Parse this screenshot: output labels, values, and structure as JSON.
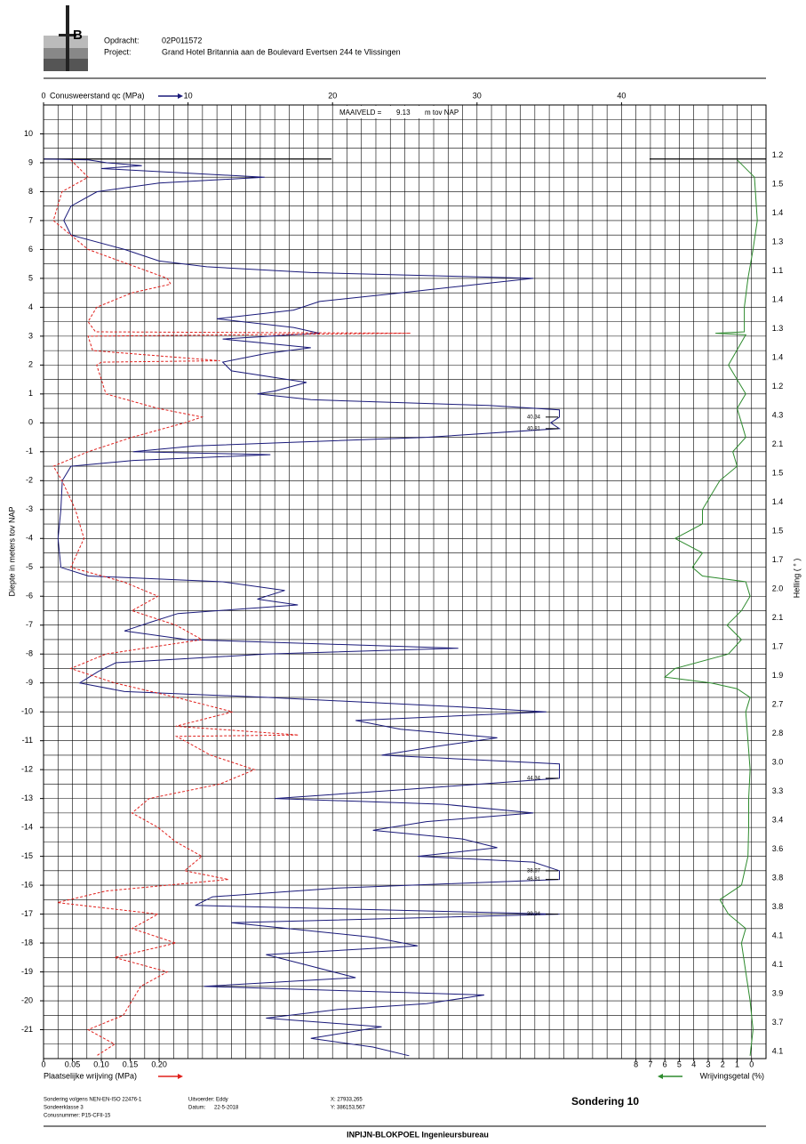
{
  "header": {
    "opdracht_label": "Opdracht:",
    "opdracht": "02P011572",
    "project_label": "Project:",
    "project": "Grand Hotel Britannia aan de Boulevard Evertsen 244 te Vlissingen"
  },
  "chart_data": {
    "type": "line",
    "maaiveld": {
      "label": "MAAIVELD =",
      "value": 9.13,
      "unit": "m tov NAP"
    },
    "ylabel": "Diepte in meters tov NAP",
    "ylim": [
      -22,
      11
    ],
    "yticks": [
      10,
      9,
      8,
      7,
      6,
      5,
      4,
      3,
      2,
      1,
      0,
      -1,
      -2,
      -3,
      -4,
      -5,
      -6,
      -7,
      -8,
      -9,
      -10,
      -11,
      -12,
      -13,
      -14,
      -15,
      -16,
      -17,
      -18,
      -19,
      -20,
      -21
    ],
    "grid": {
      "x_step": 1,
      "y_step": 0.5
    },
    "axes": {
      "qc": {
        "label": "Conusweerstand qc (MPa)",
        "xlim": [
          0,
          50
        ],
        "xticks": [
          0,
          10,
          20,
          30,
          40
        ]
      },
      "fs": {
        "label": "Plaatselijke wrijving (MPa)",
        "xlim": [
          0,
          1.25
        ],
        "xticks": [
          0,
          0.05,
          {
            "value": 0.1,
            "label": "0.10"
          },
          0.15,
          {
            "value": 0.2,
            "label": "0.20"
          }
        ]
      },
      "rf": {
        "label": "Wrijvingsgetal (%)",
        "xlim": [
          49,
          -1
        ],
        "xticks": [
          8,
          7,
          6,
          5,
          4,
          3,
          2,
          1,
          0
        ]
      }
    },
    "series": [
      {
        "name": "Conusweerstand qc (MPa)",
        "axis": "qc",
        "color": "#1a1a7a",
        "line_style": "solid",
        "depth": [
          9.13,
          9.1,
          9.0,
          8.9,
          8.8,
          8.5,
          8.3,
          8.0,
          7.5,
          7.0,
          6.5,
          6.0,
          5.6,
          5.4,
          5.2,
          5.0,
          4.8,
          4.5,
          4.2,
          3.9,
          3.6,
          3.3,
          3.1,
          2.9,
          2.6,
          2.4,
          2.1,
          1.8,
          1.4,
          1.1,
          1.0,
          0.8,
          0.6,
          0.45,
          0.2,
          0.0,
          -0.2,
          -0.5,
          -0.8,
          -1.0,
          -1.1,
          -1.3,
          -1.5,
          -2.0,
          -3.0,
          -4.0,
          -5.0,
          -5.3,
          -5.5,
          -5.8,
          -6.1,
          -6.3,
          -6.6,
          -6.9,
          -7.2,
          -7.5,
          -7.8,
          -8.0,
          -8.3,
          -8.6,
          -9.0,
          -9.3,
          -9.5,
          -9.8,
          -10.0,
          -10.3,
          -10.6,
          -10.9,
          -11.2,
          -11.5,
          -11.8,
          -12.3,
          -12.7,
          -13.0,
          -13.2,
          -13.5,
          -13.8,
          -14.1,
          -14.4,
          -14.7,
          -15.0,
          -15.2,
          -15.5,
          -15.8,
          -16.1,
          -16.4,
          -16.7,
          -17.0,
          -17.3,
          -17.8,
          -18.1,
          -18.4,
          -18.8,
          -19.2,
          -19.5,
          -19.8,
          -20.1,
          -20.3,
          -20.6,
          -20.9,
          -21.3,
          -21.6,
          -21.9
        ],
        "values": [
          0,
          3.1,
          4.4,
          6.8,
          4,
          15.3,
          8,
          3.7,
          1.9,
          1.4,
          1.9,
          5.6,
          8,
          11.3,
          18.5,
          33.9,
          30.2,
          24.7,
          19.1,
          17.3,
          12,
          17.3,
          19.1,
          12.4,
          18.5,
          15.4,
          12.4,
          13,
          18.2,
          16,
          14.8,
          18.5,
          30.8,
          35.7,
          35.7,
          35.1,
          35.7,
          26.5,
          10.5,
          6.2,
          15.7,
          6.2,
          1.9,
          1.3,
          1.2,
          1.0,
          1.2,
          3.1,
          12.4,
          16.7,
          14.8,
          17.6,
          9.3,
          7.4,
          5.6,
          9.9,
          28.7,
          15.4,
          5,
          3.8,
          2.5,
          5.6,
          15.4,
          27.7,
          34.8,
          21.6,
          24.7,
          31.4,
          27.1,
          23.4,
          35.7,
          35.7,
          24.7,
          16,
          27.7,
          33.9,
          26.5,
          22.8,
          29,
          31.4,
          25.9,
          33.9,
          35.7,
          35.7,
          20.4,
          11.7,
          10.5,
          35.7,
          13,
          22.8,
          25.9,
          15.4,
          18.5,
          21.6,
          11.1,
          30.5,
          26.5,
          20.4,
          15.4,
          23.4,
          18.5,
          22.8,
          25.3
        ]
      },
      {
        "name": "Plaatselijke wrijving (MPa)",
        "axis": "fs",
        "color": "#e0201c",
        "line_style": "dashed",
        "depth": [
          9.1,
          8.5,
          8.0,
          7.0,
          6.0,
          5.0,
          4.8,
          4.5,
          4.0,
          3.5,
          3.15,
          3.1,
          3.0,
          2.5,
          2.15,
          2.1,
          2.0,
          1.0,
          0.5,
          0.2,
          0.0,
          -0.5,
          -1.0,
          -1.5,
          -2.0,
          -3.0,
          -4.0,
          -5.0,
          -5.5,
          -6.0,
          -6.5,
          -7.0,
          -7.5,
          -8.0,
          -8.5,
          -9.0,
          -9.5,
          -10.0,
          -10.5,
          -10.8,
          -10.85,
          -11.0,
          -11.5,
          -12.0,
          -12.5,
          -13.0,
          -13.5,
          -14.0,
          -14.5,
          -15.0,
          -15.5,
          -15.8,
          -16.2,
          -16.6,
          -17.0,
          -17.5,
          -18.0,
          -18.5,
          -19.0,
          -19.5,
          -20.0,
          -20.5,
          -21.0,
          -21.5,
          -21.9
        ],
        "values": [
          0.047,
          0.077,
          0.032,
          0.017,
          0.077,
          0.214,
          0.22,
          0.153,
          0.092,
          0.077,
          0.09,
          0.635,
          0.077,
          0.085,
          0.305,
          0.1,
          0.092,
          0.108,
          0.198,
          0.274,
          0.244,
          0.153,
          0.077,
          0.017,
          0.032,
          0.055,
          0.07,
          0.047,
          0.138,
          0.198,
          0.153,
          0.229,
          0.274,
          0.108,
          0.047,
          0.123,
          0.229,
          0.327,
          0.229,
          0.441,
          0.23,
          0.244,
          0.289,
          0.365,
          0.305,
          0.183,
          0.153,
          0.198,
          0.229,
          0.274,
          0.244,
          0.32,
          0.108,
          0.024,
          0.198,
          0.153,
          0.229,
          0.123,
          0.214,
          0.168,
          0.153,
          0.138,
          0.077,
          0.123,
          0.092
        ]
      },
      {
        "name": "Wrijvingsgetal (%)",
        "axis": "rf",
        "color": "#2e8b2e",
        "line_style": "solid",
        "depth": [
          9.1,
          8.5,
          7.0,
          6.0,
          5.0,
          4.0,
          3.15,
          3.1,
          3.05,
          2.0,
          1.0,
          0.5,
          0.0,
          -0.5,
          -1.0,
          -1.5,
          -2.0,
          -2.5,
          -3.0,
          -3.5,
          -4.0,
          -4.5,
          -5.0,
          -5.3,
          -5.5,
          -6.0,
          -6.5,
          -7.0,
          -7.5,
          -8.0,
          -8.5,
          -8.8,
          -9.0,
          -9.2,
          -9.5,
          -10.0,
          -11.0,
          -12.0,
          -13.0,
          -14.0,
          -15.0,
          -16.0,
          -16.5,
          -17.0,
          -17.5,
          -18.0,
          -19.0,
          -20.0,
          -21.0,
          -21.9
        ],
        "values": [
          1.0,
          -0.2,
          -0.4,
          -0.1,
          0.25,
          0.5,
          0.5,
          2.5,
          0.4,
          1.6,
          0.4,
          1.0,
          0.7,
          0.4,
          1.3,
          1.0,
          2.2,
          2.8,
          3.4,
          3.4,
          5.3,
          3.4,
          4.1,
          3.4,
          0.4,
          0.1,
          0.7,
          1.7,
          0.7,
          1.6,
          5.3,
          6.0,
          2.8,
          1.0,
          0.1,
          0.4,
          0.25,
          0.1,
          0.2,
          0.2,
          0.25,
          0.7,
          2.2,
          1.6,
          0.4,
          0.7,
          0.4,
          0.1,
          -0.1,
          0.1
        ]
      }
    ],
    "clip_labels": [
      {
        "depth": 0.2,
        "label": "40.34"
      },
      {
        "depth": -0.2,
        "label": "40.81"
      },
      {
        "depth": -12.3,
        "label": "44.34"
      },
      {
        "depth": -15.5,
        "label": "38.97"
      },
      {
        "depth": -15.8,
        "label": "46.81"
      },
      {
        "depth": -17.0,
        "label": "39.34"
      }
    ],
    "helling": {
      "label": "Helling ( ° )",
      "depths": [
        9.25,
        8.25,
        7.25,
        6.25,
        5.25,
        4.25,
        3.25,
        2.25,
        1.25,
        0.25,
        -0.75,
        -1.75,
        -2.75,
        -3.75,
        -4.75,
        -5.75,
        -6.75,
        -7.75,
        -8.75,
        -9.75,
        -10.75,
        -11.75,
        -12.75,
        -13.75,
        -14.75,
        -15.75,
        -16.75,
        -17.75,
        -18.75,
        -19.75,
        -20.75,
        -21.75
      ],
      "values": [
        1.2,
        1.5,
        1.4,
        1.3,
        1.1,
        1.4,
        1.3,
        1.4,
        1.2,
        4.3,
        2.1,
        1.5,
        1.4,
        1.5,
        1.7,
        2.0,
        2.1,
        1.7,
        1.9,
        2.7,
        2.8,
        3.0,
        3.3,
        3.4,
        3.6,
        3.8,
        3.8,
        4.1,
        4.1,
        3.9,
        3.7,
        4.1
      ],
      "value_labels": [
        "1.2",
        "1.5",
        "1.4",
        "1.3",
        "1.1",
        "1.4",
        "1.3",
        "1.4",
        "1.2",
        "4.3",
        "2.1",
        "1.5",
        "1.4",
        "1.5",
        "1.7",
        "2.0",
        "2.1",
        "1.7",
        "1.9",
        "2.7",
        "2.8",
        "3.0",
        "3.3",
        "3.4",
        "3.6",
        "3.8",
        "3.8",
        "4.1",
        "4.1",
        "3.9",
        "3.7",
        "4.1"
      ]
    }
  },
  "footer": {
    "norm": "Sondering volgens NEN-EN-ISO 22476-1",
    "klasse": "Sondeerklasse 3",
    "conus": "Conusnummer: P15-CFII-15",
    "uitvoerder": "Uitvoerder: Eddy",
    "datum_label": "Datum:",
    "datum": "22-5-2018",
    "x": "X: 27933,265",
    "y": "Y: 386153,567",
    "sondering": "Sondering  10",
    "company": "INPIJN-BLOKPOEL Ingenieursbureau"
  }
}
